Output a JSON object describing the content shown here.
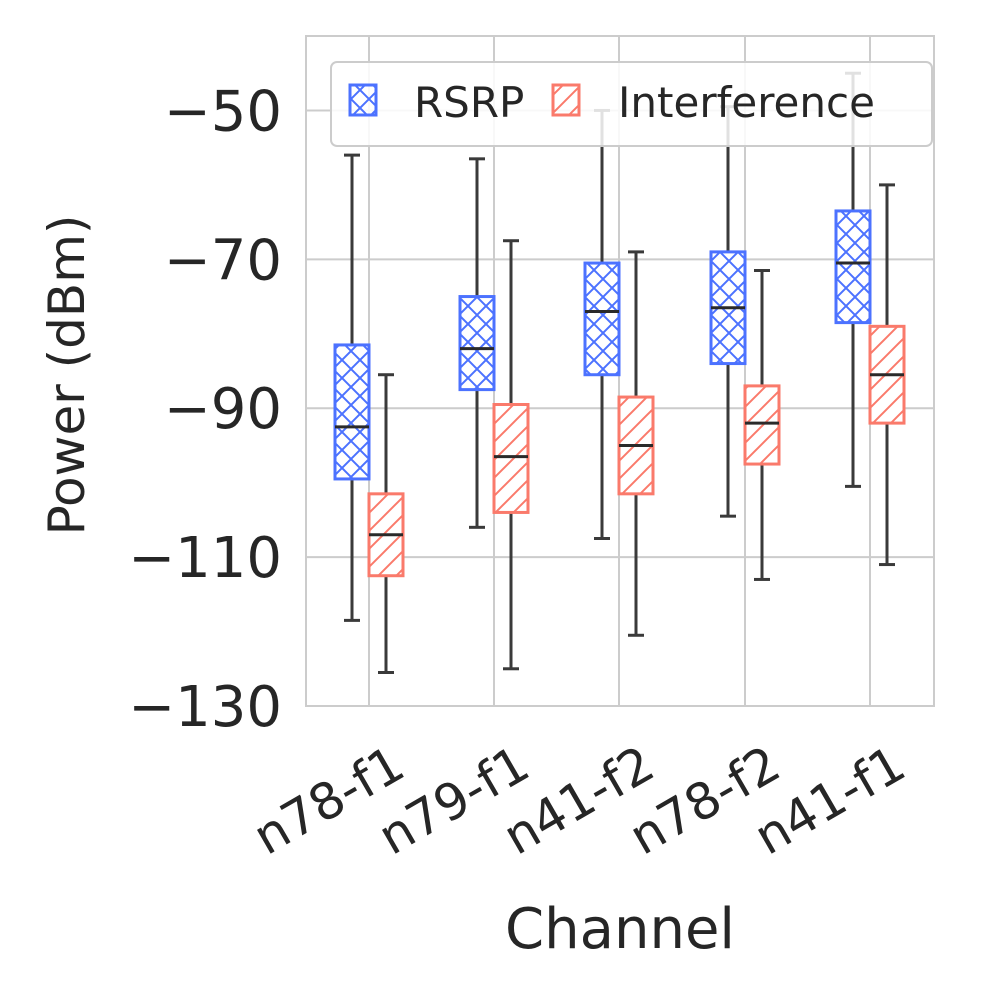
{
  "chart_data": {
    "type": "boxplot",
    "xlabel": "Channel",
    "ylabel": "Power (dBm)",
    "ylim": [
      -130,
      -40
    ],
    "yticks": [
      -130,
      -110,
      -90,
      -70,
      -50
    ],
    "ytick_labels": [
      "−130",
      "−110",
      "−90",
      "−70",
      "−50"
    ],
    "grid": true,
    "legend_position": "top-right",
    "categories": [
      "n78-f1",
      "n79-f1",
      "n41-f2",
      "n78-f2",
      "n41-f1"
    ],
    "series": [
      {
        "name": "RSRP",
        "color": "#4c72ff",
        "hatch": "crosshatch",
        "boxes": [
          {
            "whislo": -118.5,
            "q1": -99.5,
            "med": -92.5,
            "q3": -81.5,
            "whishi": -56
          },
          {
            "whislo": -106,
            "q1": -87.5,
            "med": -82,
            "q3": -75,
            "whishi": -56.5
          },
          {
            "whislo": -107.5,
            "q1": -85.5,
            "med": -77,
            "q3": -70.5,
            "whishi": -50
          },
          {
            "whislo": -104.5,
            "q1": -84,
            "med": -76.5,
            "q3": -69,
            "whishi": -49.5
          },
          {
            "whislo": -100.5,
            "q1": -78.5,
            "med": -70.5,
            "q3": -63.5,
            "whishi": -45
          }
        ]
      },
      {
        "name": "Interference",
        "color": "#fa7a6b",
        "hatch": "diagonal",
        "boxes": [
          {
            "whislo": -125.5,
            "q1": -112.5,
            "med": -107,
            "q3": -101.5,
            "whishi": -85.5
          },
          {
            "whislo": -125,
            "q1": -104,
            "med": -96.5,
            "q3": -89.5,
            "whishi": -67.5
          },
          {
            "whislo": -120.5,
            "q1": -101.5,
            "med": -95,
            "q3": -88.5,
            "whishi": -69
          },
          {
            "whislo": -113,
            "q1": -97.5,
            "med": -92,
            "q3": -87,
            "whishi": -71.5
          },
          {
            "whislo": -111,
            "q1": -92,
            "med": -85.5,
            "q3": -79,
            "whishi": -60
          }
        ]
      }
    ]
  }
}
